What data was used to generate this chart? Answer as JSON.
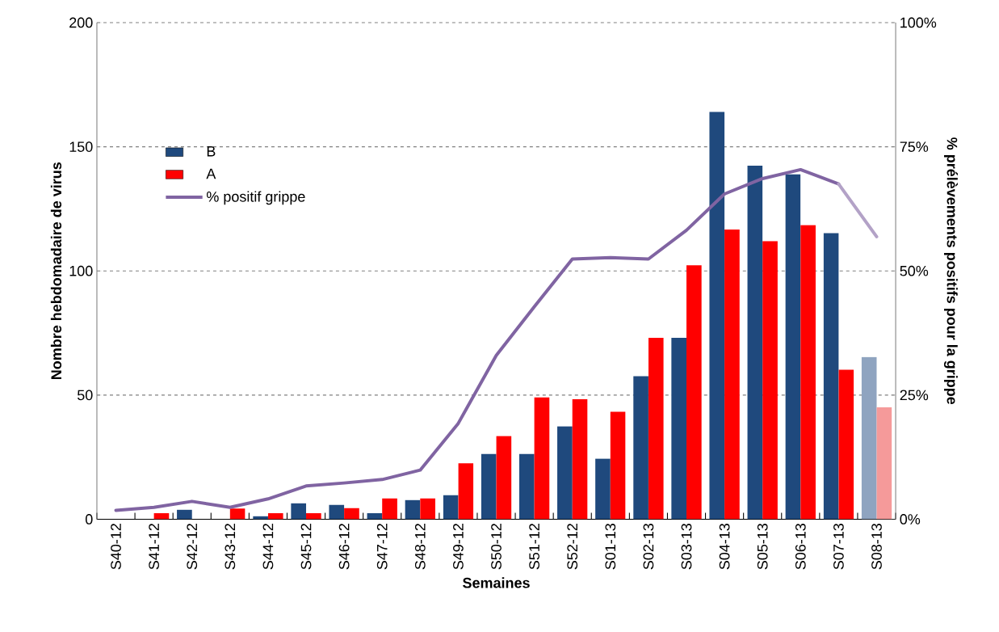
{
  "chart_data": {
    "type": "bar",
    "xlabel": "Semaines",
    "ylabel": "Nombre hebdomadaire  de virus",
    "y2label": "% prélèvements  positifs pour la grippe",
    "categories": [
      "S40-12",
      "S41-12",
      "S42-12",
      "S43-12",
      "S44-12",
      "S45-12",
      "S46-12",
      "S47-12",
      "S48-12",
      "S49-12",
      "S50-12",
      "S51-12",
      "S52-12",
      "S01-13",
      "S02-13",
      "S03-13",
      "S04-13",
      "S05-13",
      "S06-13",
      "S07-13",
      "S08-13"
    ],
    "series": [
      {
        "name": "B",
        "color": "#1f497d",
        "colors": [
          "#1f497d",
          "#1f497d",
          "#1f497d",
          "#1f497d",
          "#1f497d",
          "#1f497d",
          "#1f497d",
          "#1f497d",
          "#1f497d",
          "#1f497d",
          "#1f497d",
          "#1f497d",
          "#1f497d",
          "#1f497d",
          "#1f497d",
          "#1f497d",
          "#1f497d",
          "#1f497d",
          "#1f497d",
          "#1f497d",
          "#8fa4c0"
        ],
        "values": [
          0,
          0,
          3.8,
          0,
          1.2,
          6.4,
          5.8,
          2.4,
          7.7,
          9.7,
          26.3,
          26.3,
          37.4,
          24.4,
          57.6,
          73.1,
          164,
          142.4,
          139,
          115.2,
          65.3
        ]
      },
      {
        "name": "A",
        "color": "#ff0000",
        "colors": [
          "#ff0000",
          "#ff0000",
          "#ff0000",
          "#ff0000",
          "#ff0000",
          "#ff0000",
          "#ff0000",
          "#ff0000",
          "#ff0000",
          "#ff0000",
          "#ff0000",
          "#ff0000",
          "#ff0000",
          "#ff0000",
          "#ff0000",
          "#ff0000",
          "#ff0000",
          "#ff0000",
          "#ff0000",
          "#ff0000",
          "#f59a9a"
        ],
        "values": [
          0,
          2.4,
          0,
          4.3,
          2.4,
          2.4,
          4.5,
          8.4,
          8.4,
          22.5,
          33.5,
          49.1,
          48.4,
          43.3,
          73.1,
          102.3,
          116.7,
          112,
          118.5,
          60.2,
          45.1
        ]
      },
      {
        "name": "% positif grippe",
        "type": "line",
        "axis": "y2",
        "color": "#8064a2",
        "values": [
          1.8,
          2.4,
          3.6,
          2.4,
          4.1,
          6.7,
          7.3,
          8,
          9.9,
          19.3,
          33,
          42.8,
          52.4,
          52.7,
          52.4,
          58.2,
          65.5,
          68.6,
          70.4,
          67.5,
          null
        ]
      },
      {
        "type": "line",
        "axis": "y2",
        "color": "#b3a2c7",
        "values": [
          null,
          null,
          null,
          null,
          null,
          null,
          null,
          null,
          null,
          null,
          null,
          null,
          null,
          null,
          null,
          null,
          null,
          null,
          null,
          67.5,
          56.9
        ]
      }
    ],
    "ylim": [
      0,
      200
    ],
    "yticks": [
      0,
      50,
      100,
      150,
      200
    ],
    "y2lim": [
      0,
      100
    ],
    "y2ticks": [
      {
        "value": 0,
        "label": "0%"
      },
      {
        "value": 25,
        "label": "25%"
      },
      {
        "value": 50,
        "label": "50%"
      },
      {
        "value": 75,
        "label": "75%"
      },
      {
        "value": 100,
        "label": "100%"
      }
    ],
    "grid": "y",
    "legend": "top left"
  }
}
